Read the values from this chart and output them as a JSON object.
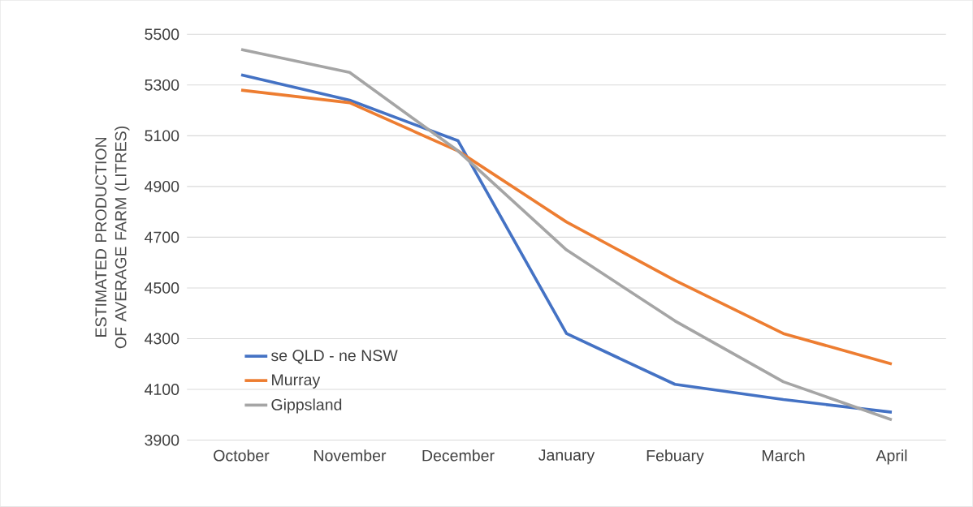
{
  "chart_data": {
    "type": "line",
    "ylabel": "ESTIMATED PRODUCTION OF AVERAGE FARM (LITRES)",
    "categories": [
      "October",
      "November",
      "December",
      "January",
      "Febuary",
      "March",
      "April"
    ],
    "series": [
      {
        "name": "se QLD - ne NSW",
        "color": "#4472c4",
        "values": [
          5340,
          5240,
          5080,
          4320,
          4120,
          4060,
          4010
        ]
      },
      {
        "name": "Murray",
        "color": "#ed7d31",
        "values": [
          5280,
          5230,
          5040,
          4760,
          4530,
          4320,
          4200
        ]
      },
      {
        "name": "Gippsland",
        "color": "#a5a5a5",
        "values": [
          5440,
          5350,
          5040,
          4650,
          4370,
          4130,
          3980
        ]
      }
    ],
    "ylim": [
      3900,
      5500
    ],
    "yticks": [
      3900,
      4100,
      4300,
      4500,
      4700,
      4900,
      5100,
      5300,
      5500
    ],
    "grid": "y",
    "legend": "bottom left",
    "marker": "none",
    "line_style": "solid"
  }
}
